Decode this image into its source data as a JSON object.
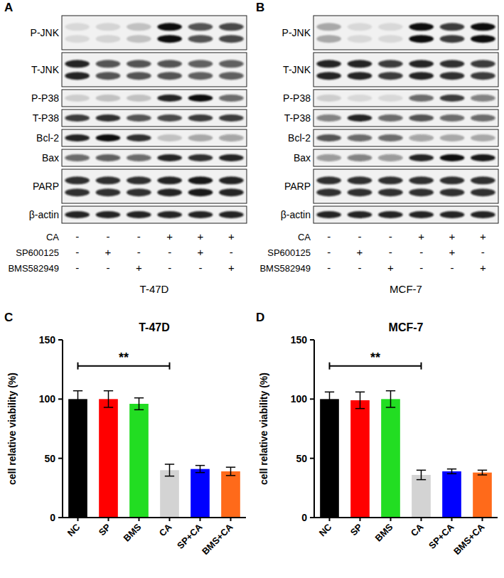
{
  "blots": [
    {
      "panel": "A",
      "cell_line": "T-47D",
      "rows": [
        {
          "label": "P-JNK",
          "double": true,
          "intensity": [
            0.1,
            0.12,
            0.2,
            1,
            0.7,
            0.75
          ]
        },
        {
          "label": "T-JNK",
          "double": true,
          "intensity": [
            0.9,
            0.7,
            0.7,
            0.7,
            0.65,
            0.65
          ]
        },
        {
          "label": "P-P38",
          "double": false,
          "intensity": [
            0.15,
            0.2,
            0.2,
            0.9,
            1,
            0.6
          ]
        },
        {
          "label": "T-P38",
          "double": false,
          "intensity": [
            0.8,
            0.85,
            0.7,
            0.75,
            0.8,
            0.8
          ]
        },
        {
          "label": "Bcl-2",
          "double": false,
          "intensity": [
            0.9,
            1,
            0.85,
            0.2,
            0.3,
            0.35
          ]
        },
        {
          "label": "Bax",
          "double": false,
          "intensity": [
            0.6,
            0.65,
            0.6,
            0.9,
            0.85,
            0.9
          ]
        },
        {
          "label": "PARP",
          "double": true,
          "intensity": [
            0.85,
            0.85,
            0.85,
            0.9,
            0.95,
            0.9
          ]
        },
        {
          "label": "β-actin",
          "double": false,
          "intensity": [
            0.9,
            0.9,
            0.9,
            0.9,
            0.9,
            0.9
          ]
        }
      ],
      "treatments": [
        {
          "label": "CA",
          "signs": [
            "-",
            "-",
            "-",
            "+",
            "+",
            "+"
          ]
        },
        {
          "label": "SP600125",
          "signs": [
            "-",
            "+",
            "-",
            "-",
            "+",
            "-"
          ]
        },
        {
          "label": "BMS582949",
          "signs": [
            "-",
            "-",
            "+",
            "-",
            "-",
            "+"
          ]
        }
      ]
    },
    {
      "panel": "B",
      "cell_line": "MCF-7",
      "rows": [
        {
          "label": "P-JNK",
          "double": true,
          "intensity": [
            0.3,
            0.1,
            0.1,
            1,
            0.8,
            1
          ]
        },
        {
          "label": "T-JNK",
          "double": true,
          "intensity": [
            0.9,
            0.9,
            0.8,
            0.9,
            0.85,
            0.8
          ]
        },
        {
          "label": "P-P38",
          "double": false,
          "intensity": [
            0.15,
            0.1,
            0.1,
            0.6,
            0.8,
            0.5
          ]
        },
        {
          "label": "T-P38",
          "double": false,
          "intensity": [
            0.5,
            0.9,
            0.6,
            0.7,
            0.6,
            0.6
          ]
        },
        {
          "label": "Bcl-2",
          "double": false,
          "intensity": [
            0.7,
            0.6,
            0.6,
            0.35,
            0.3,
            0.3
          ]
        },
        {
          "label": "Bax",
          "double": false,
          "intensity": [
            0.4,
            0.5,
            0.4,
            0.9,
            1,
            0.95
          ]
        },
        {
          "label": "PARP",
          "double": true,
          "intensity": [
            0.85,
            0.85,
            0.85,
            0.85,
            0.85,
            0.85
          ]
        },
        {
          "label": "β-actin",
          "double": false,
          "intensity": [
            0.9,
            0.9,
            0.9,
            0.9,
            0.9,
            0.9
          ]
        }
      ],
      "treatments": [
        {
          "label": "CA",
          "signs": [
            "-",
            "-",
            "-",
            "+",
            "+",
            "+"
          ]
        },
        {
          "label": "SP600125",
          "signs": [
            "-",
            "+",
            "-",
            "-",
            "+",
            "-"
          ]
        },
        {
          "label": "BMS582949",
          "signs": [
            "-",
            "-",
            "+",
            "-",
            "-",
            "+"
          ]
        }
      ]
    }
  ],
  "chart_data": [
    {
      "type": "bar",
      "panel": "C",
      "title": "T-47D",
      "categories": [
        "NC",
        "SP",
        "BMS",
        "CA",
        "SP+CA",
        "BMS+CA"
      ],
      "values": [
        100,
        100,
        96,
        40,
        41,
        39
      ],
      "errors": [
        7,
        7,
        5,
        5,
        3,
        3.5
      ],
      "colors": [
        "#000000",
        "#ff0000",
        "#22dd22",
        "#d3d3d3",
        "#0000ff",
        "#ff6a1a"
      ],
      "ylabel": "cell relative viability (%)",
      "ylim": [
        0,
        150
      ],
      "yticks": [
        0,
        50,
        100,
        150
      ],
      "annotations": [
        {
          "text": "**",
          "from": 0,
          "to": 3,
          "y": 128
        }
      ]
    },
    {
      "type": "bar",
      "panel": "D",
      "title": "MCF-7",
      "categories": [
        "NC",
        "SP",
        "BMS",
        "CA",
        "SP+CA",
        "BMS+CA"
      ],
      "values": [
        100,
        99,
        100,
        36,
        39,
        38
      ],
      "errors": [
        6,
        7,
        7,
        4,
        2,
        2
      ],
      "colors": [
        "#000000",
        "#ff0000",
        "#22dd22",
        "#d3d3d3",
        "#0000ff",
        "#ff6a1a"
      ],
      "ylabel": "cell relative viability (%)",
      "ylim": [
        0,
        150
      ],
      "yticks": [
        0,
        50,
        100,
        150
      ],
      "annotations": [
        {
          "text": "**",
          "from": 0,
          "to": 3,
          "y": 128
        }
      ]
    }
  ]
}
